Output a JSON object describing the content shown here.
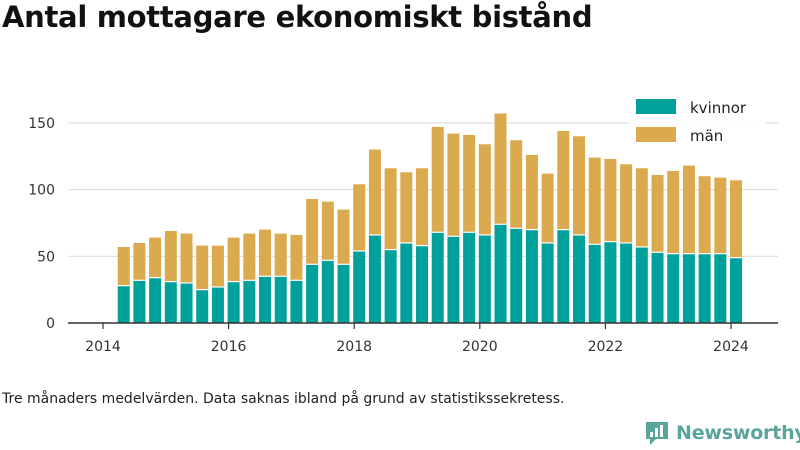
{
  "page": {
    "title": "Antal mottagare ekonomiskt bistånd",
    "footnote": "Tre månaders medelvärden. Data saknas ibland på grund av statistikssekretess.",
    "brand": "Newsworthy",
    "brand_icon": "newsworthy-logo-icon"
  },
  "chart_data": {
    "type": "bar",
    "stacked": true,
    "title": "Antal mottagare ekonomiskt bistånd",
    "xlabel": "",
    "ylabel": "",
    "ylim": [
      0,
      175
    ],
    "yticks": [
      0,
      50,
      100,
      150
    ],
    "xlim": [
      2013.75,
      2024.75
    ],
    "xticks": [
      2014,
      2016,
      2018,
      2020,
      2022,
      2024
    ],
    "grid": true,
    "legend": "top-right",
    "x": [
      2014.33,
      2014.58,
      2014.83,
      2015.08,
      2015.33,
      2015.58,
      2015.83,
      2016.08,
      2016.33,
      2016.58,
      2016.83,
      2017.08,
      2017.33,
      2017.58,
      2017.83,
      2018.08,
      2018.33,
      2018.58,
      2018.83,
      2019.08,
      2019.33,
      2019.58,
      2019.83,
      2020.08,
      2020.33,
      2020.58,
      2020.83,
      2021.08,
      2021.33,
      2021.58,
      2021.83,
      2022.08,
      2022.33,
      2022.58,
      2022.83,
      2023.08,
      2023.33,
      2023.58,
      2023.83,
      2024.08
    ],
    "series": [
      {
        "name": "kvinnor",
        "color": "#00a19a",
        "values": [
          28,
          32,
          34,
          31,
          30,
          25,
          27,
          31,
          32,
          35,
          35,
          32,
          44,
          47,
          44,
          54,
          66,
          55,
          60,
          58,
          68,
          65,
          68,
          66,
          74,
          71,
          70,
          60,
          70,
          66,
          59,
          61,
          60,
          57,
          53,
          52,
          52,
          52,
          52,
          49
        ]
      },
      {
        "name": "män",
        "color": "#dba94e",
        "values": [
          29,
          28,
          30,
          38,
          37,
          33,
          31,
          33,
          35,
          35,
          32,
          34,
          49,
          44,
          41,
          50,
          64,
          61,
          53,
          58,
          79,
          77,
          73,
          68,
          83,
          66,
          56,
          52,
          74,
          74,
          65,
          62,
          59,
          59,
          58,
          62,
          66,
          58,
          57,
          58
        ]
      }
    ]
  }
}
